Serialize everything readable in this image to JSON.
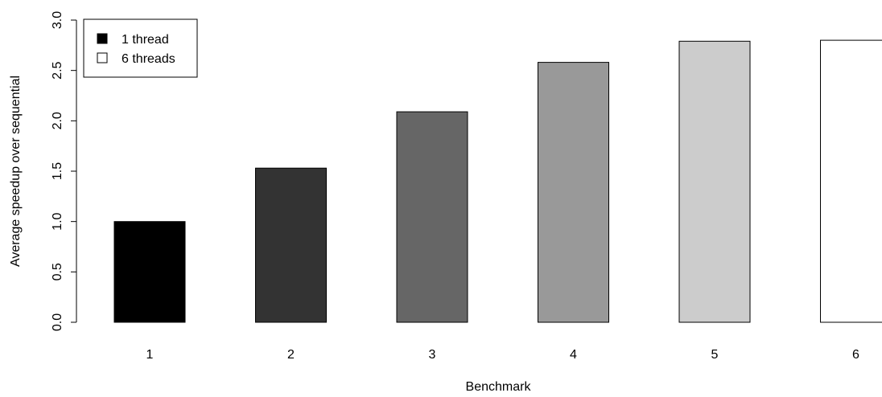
{
  "chart_data": {
    "type": "bar",
    "categories": [
      "1",
      "2",
      "3",
      "4",
      "5",
      "6"
    ],
    "values": [
      1.0,
      1.53,
      2.09,
      2.58,
      2.79,
      2.8
    ],
    "bar_colors": [
      "#000000",
      "#333333",
      "#666666",
      "#999999",
      "#cccccc",
      "#ffffff"
    ],
    "xlabel": "Benchmark",
    "ylabel": "Average speedup over sequential",
    "ylim": [
      0,
      3.0
    ],
    "yticks": [
      "0.0",
      "0.5",
      "1.0",
      "1.5",
      "2.0",
      "2.5",
      "3.0"
    ],
    "grid": false,
    "legend": {
      "position": "top-left",
      "entries": [
        {
          "label": "1 thread",
          "color": "#000000"
        },
        {
          "label": "6 threads",
          "color": "#ffffff"
        }
      ]
    }
  }
}
